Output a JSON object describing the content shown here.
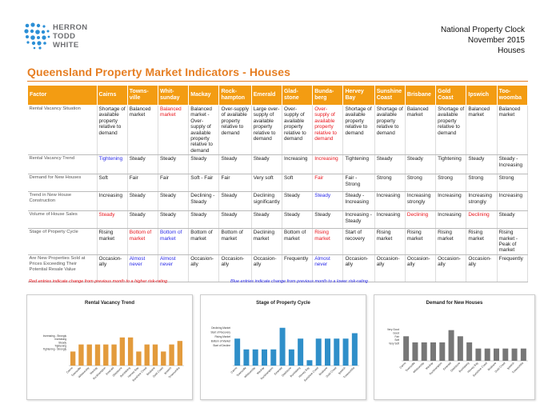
{
  "logo": {
    "line1": "HERRON",
    "line2": "TODD",
    "line3": "WHITE"
  },
  "clock": {
    "line1": "National Property Clock",
    "line2": "November 2015",
    "line3": "Houses"
  },
  "title": "Queensland Property Market Indicators - Houses",
  "colors": {
    "accent": "#f39c12",
    "title": "#e67e22",
    "red": "#e8141b",
    "blue": "#2a2ae8",
    "bar_orange": "#e39b3c",
    "bar_blue": "#2f8fc9",
    "bar_grey": "#777777"
  },
  "table": {
    "headers": [
      "Factor",
      "Cairns",
      "Towns-\nville",
      "Whit-\nsunday",
      "Mackay",
      "Rock-\nhampton",
      "Emerald",
      "Glad-\nstone",
      "Bunda-\nberg",
      "Hervey\nBay",
      "Sunshine\nCoast",
      "Brisbane",
      "Gold\nCoast",
      "Ipswich",
      "Too-\nwoomba"
    ],
    "rows": [
      {
        "factor": "Rental Vacancy Situation",
        "cells": [
          {
            "t": "Shortage of available property relative to demand",
            "c": ""
          },
          {
            "t": "Balanced market",
            "c": ""
          },
          {
            "t": "Balanced market",
            "c": "red"
          },
          {
            "t": "Balanced market - Over-supply of available property relative to demand",
            "c": ""
          },
          {
            "t": "Over-supply of available property relative to demand",
            "c": ""
          },
          {
            "t": "Large over-supply of available property relative to demand",
            "c": ""
          },
          {
            "t": "Over-supply of available property relative to demand",
            "c": ""
          },
          {
            "t": "Over-supply of available property relative to demand",
            "c": "red"
          },
          {
            "t": "Shortage of available property relative to demand",
            "c": ""
          },
          {
            "t": "Shortage of available property relative to demand",
            "c": ""
          },
          {
            "t": "Balanced market",
            "c": ""
          },
          {
            "t": "Shortage of available property relative to demand",
            "c": ""
          },
          {
            "t": "Balanced market",
            "c": ""
          },
          {
            "t": "Balanced market",
            "c": ""
          }
        ]
      },
      {
        "factor": "Rental Vacancy Trend",
        "cells": [
          {
            "t": "Tightening",
            "c": "blue"
          },
          {
            "t": "Steady",
            "c": ""
          },
          {
            "t": "Steady",
            "c": ""
          },
          {
            "t": "Steady",
            "c": ""
          },
          {
            "t": "Steady",
            "c": ""
          },
          {
            "t": "Steady",
            "c": ""
          },
          {
            "t": "Increasing",
            "c": ""
          },
          {
            "t": "Increasing",
            "c": "red"
          },
          {
            "t": "Tightening",
            "c": ""
          },
          {
            "t": "Steady",
            "c": ""
          },
          {
            "t": "Steady",
            "c": ""
          },
          {
            "t": "Tightening",
            "c": ""
          },
          {
            "t": "Steady",
            "c": ""
          },
          {
            "t": "Steady - Increasing",
            "c": ""
          }
        ]
      },
      {
        "factor": "Demand for New Houses",
        "cells": [
          {
            "t": "Soft",
            "c": ""
          },
          {
            "t": "Fair",
            "c": ""
          },
          {
            "t": "Fair",
            "c": ""
          },
          {
            "t": "Soft - Fair",
            "c": ""
          },
          {
            "t": "Fair",
            "c": ""
          },
          {
            "t": "Very soft",
            "c": ""
          },
          {
            "t": "Soft",
            "c": ""
          },
          {
            "t": "Fair",
            "c": "red"
          },
          {
            "t": "Fair - Strong",
            "c": ""
          },
          {
            "t": "Strong",
            "c": ""
          },
          {
            "t": "Strong",
            "c": ""
          },
          {
            "t": "Strong",
            "c": ""
          },
          {
            "t": "Strong",
            "c": ""
          },
          {
            "t": "Strong",
            "c": ""
          }
        ]
      },
      {
        "factor": "Trend in New House Construction",
        "cells": [
          {
            "t": "Increasing",
            "c": ""
          },
          {
            "t": "Steady",
            "c": ""
          },
          {
            "t": "Steady",
            "c": ""
          },
          {
            "t": "Declining - Steady",
            "c": ""
          },
          {
            "t": "Steady",
            "c": ""
          },
          {
            "t": "Declining significantly",
            "c": ""
          },
          {
            "t": "Steady",
            "c": ""
          },
          {
            "t": "Steady",
            "c": "blue"
          },
          {
            "t": "Steady - Increasing",
            "c": ""
          },
          {
            "t": "Increasing",
            "c": ""
          },
          {
            "t": "Increasing strongly",
            "c": ""
          },
          {
            "t": "Increasing",
            "c": ""
          },
          {
            "t": "Increasing strongly",
            "c": ""
          },
          {
            "t": "Increasing",
            "c": ""
          }
        ]
      },
      {
        "factor": "Volume of House Sales",
        "cells": [
          {
            "t": "Steady",
            "c": "red"
          },
          {
            "t": "Steady",
            "c": ""
          },
          {
            "t": "Steady",
            "c": ""
          },
          {
            "t": "Steady",
            "c": ""
          },
          {
            "t": "Steady",
            "c": ""
          },
          {
            "t": "Steady",
            "c": ""
          },
          {
            "t": "Steady",
            "c": ""
          },
          {
            "t": "Steady",
            "c": ""
          },
          {
            "t": "Increasing - Steady",
            "c": ""
          },
          {
            "t": "Increasing",
            "c": ""
          },
          {
            "t": "Declining",
            "c": "red"
          },
          {
            "t": "Increasing",
            "c": ""
          },
          {
            "t": "Declining",
            "c": "red"
          },
          {
            "t": "Steady",
            "c": ""
          }
        ]
      },
      {
        "factor": "Stage of Property Cycle",
        "cells": [
          {
            "t": "Rising market",
            "c": ""
          },
          {
            "t": "Bottom of market",
            "c": "red"
          },
          {
            "t": "Bottom of market",
            "c": "blue"
          },
          {
            "t": "Bottom of market",
            "c": ""
          },
          {
            "t": "Bottom of market",
            "c": ""
          },
          {
            "t": "Declining market",
            "c": ""
          },
          {
            "t": "Bottom of market",
            "c": ""
          },
          {
            "t": "Rising market",
            "c": "red"
          },
          {
            "t": "Start of recovery",
            "c": ""
          },
          {
            "t": "Rising market",
            "c": ""
          },
          {
            "t": "Rising market",
            "c": ""
          },
          {
            "t": "Rising market",
            "c": ""
          },
          {
            "t": "Rising market",
            "c": ""
          },
          {
            "t": "Rising market - Peak of market",
            "c": ""
          }
        ]
      },
      {
        "factor": "Are New Properties Sold at Prices Exceeding Their Potential Resale Value",
        "cells": [
          {
            "t": "Occasion-ally",
            "c": ""
          },
          {
            "t": "Almost never",
            "c": "blue"
          },
          {
            "t": "Almost never",
            "c": "blue"
          },
          {
            "t": "Occasion-ally",
            "c": ""
          },
          {
            "t": "Occasion-ally",
            "c": ""
          },
          {
            "t": "Occasion-ally",
            "c": ""
          },
          {
            "t": "Frequently",
            "c": ""
          },
          {
            "t": "Almost never",
            "c": "blue"
          },
          {
            "t": "Occasion-ally",
            "c": ""
          },
          {
            "t": "Occasion-ally",
            "c": ""
          },
          {
            "t": "Occasion-ally",
            "c": ""
          },
          {
            "t": "Occasion-ally",
            "c": ""
          },
          {
            "t": "Occasion-ally",
            "c": ""
          },
          {
            "t": "Frequently",
            "c": ""
          }
        ]
      }
    ]
  },
  "legend": {
    "red": "Red entries indicate change from previous month to a higher risk-rating",
    "blue": "Blue entries indicate change from previous month to a lower risk-rating"
  },
  "chart_data": [
    {
      "type": "bar",
      "title": "Rental Vacancy Trend",
      "categories": [
        "Cairns",
        "Townsville",
        "Whitsunday",
        "Mackay",
        "Rockhampton",
        "Emerald",
        "Gladstone",
        "Bundaberg",
        "Hervey Bay",
        "Sunshine Coast",
        "Brisbane",
        "Gold Coast",
        "Ipswich",
        "Toowoomba"
      ],
      "ylabels": [
        "Increasing - Strongly",
        "Increasing",
        "Steady",
        "Tightening",
        "Tightening - Strongly"
      ],
      "values": [
        2,
        3,
        3,
        3,
        3,
        3,
        4,
        4,
        2,
        3,
        3,
        2,
        3,
        3.5
      ],
      "ylim": [
        0,
        5
      ]
    },
    {
      "type": "bar",
      "title": "Stage of Property Cycle",
      "categories": [
        "Cairns",
        "Townsville",
        "Whitsunday",
        "Mackay",
        "Rockhampton",
        "Emerald",
        "Gladstone",
        "Bundaberg",
        "Hervey Bay",
        "Sunshine Coast",
        "Brisbane",
        "Gold Coast",
        "Ipswich",
        "Toowoomba"
      ],
      "ylabels": [
        "Declining Market",
        "Start of Recovery",
        "Rising Market",
        "Bottom of Market",
        "Start of Decline"
      ],
      "values": [
        5,
        3,
        3,
        3,
        3,
        7,
        3,
        5,
        1,
        5,
        5,
        5,
        5,
        6
      ],
      "ylim": [
        0,
        8
      ]
    },
    {
      "type": "bar",
      "title": "Demand for New Houses",
      "categories": [
        "Cairns",
        "Townsville",
        "Whitsunday",
        "Mackay",
        "Rockhampton",
        "Emerald",
        "Gladstone",
        "Bundaberg",
        "Hervey Bay",
        "Sunshine Coast",
        "Brisbane",
        "Gold Coast",
        "Ipswich",
        "Toowoomba"
      ],
      "ylabels": [
        "Very Good",
        "Good",
        "Fair",
        "Soft",
        "Very Soft"
      ],
      "values": [
        4,
        3,
        3,
        3,
        3,
        5,
        4,
        3,
        2,
        2,
        2,
        2,
        2,
        2
      ],
      "ylim": [
        0,
        6
      ]
    }
  ]
}
